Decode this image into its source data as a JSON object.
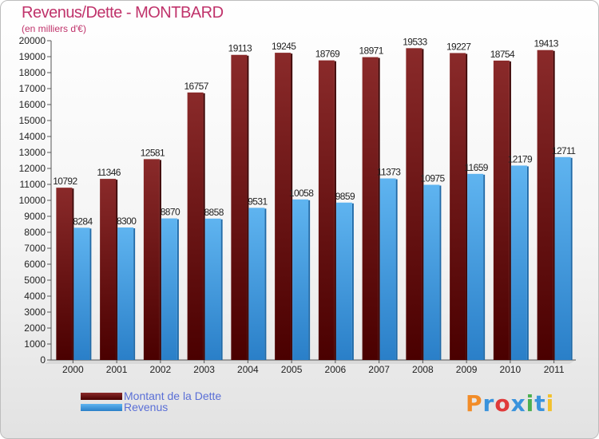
{
  "chart_data": {
    "type": "bar",
    "title": "Revenus/Dette - MONTBARD",
    "subtitle": "(en milliers d'€)",
    "categories": [
      "2000",
      "2001",
      "2002",
      "2003",
      "2004",
      "2005",
      "2006",
      "2007",
      "2008",
      "2009",
      "2010",
      "2011"
    ],
    "series": [
      {
        "name": "Montant de la Dette",
        "color": "#7a1a1a",
        "values": [
          10792,
          11346,
          12581,
          16757,
          19113,
          19245,
          18769,
          18971,
          19533,
          19227,
          18754,
          19413
        ]
      },
      {
        "name": "Revenus",
        "color": "#3a93dc",
        "values": [
          8284,
          8300,
          8870,
          8858,
          9531,
          10058,
          9859,
          11373,
          10975,
          11659,
          12179,
          12711
        ]
      }
    ],
    "ylim": [
      0,
      20000
    ],
    "ytick_step": 1000,
    "grid": false,
    "legend": "bottom-left"
  },
  "logo": {
    "text": "Proxiti",
    "colors": [
      "#f28c28",
      "#3a93dc",
      "#e03a3a",
      "#3a93dc",
      "#4caf50",
      "#3a93dc",
      "#f2c12e"
    ]
  }
}
